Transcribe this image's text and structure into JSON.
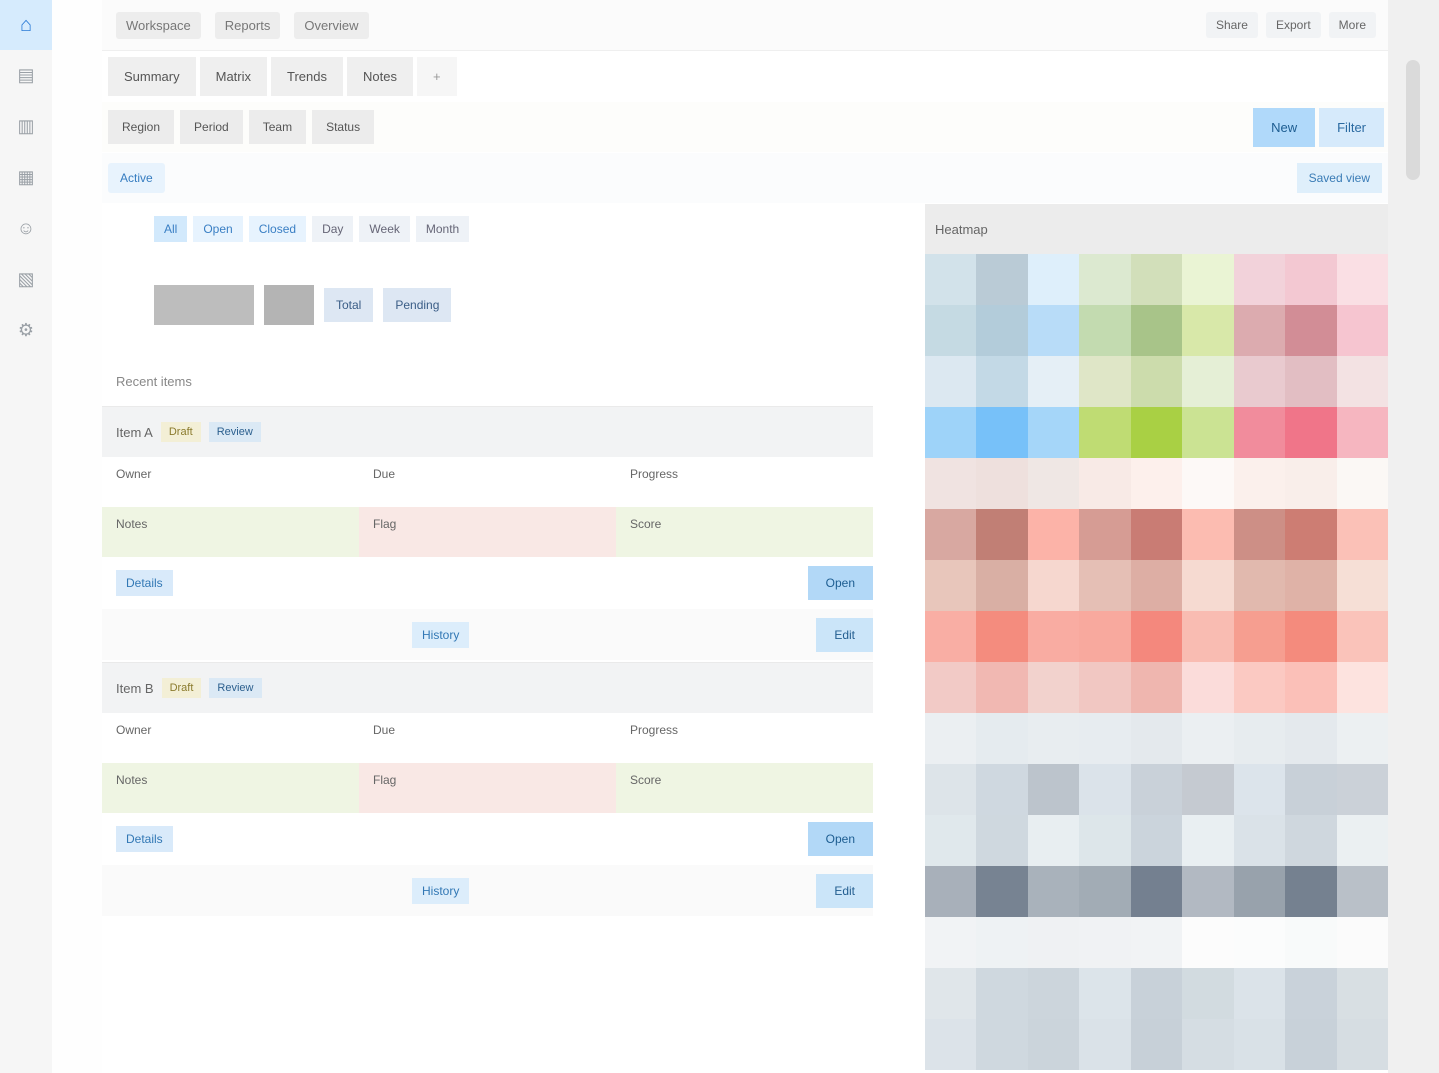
{
  "app": {
    "home_icon": "home-icon"
  },
  "rail": {
    "items": [
      {
        "icon": "inbox-icon",
        "glyph": "▤"
      },
      {
        "icon": "chart-icon",
        "glyph": "▥"
      },
      {
        "icon": "calendar-icon",
        "glyph": "▦"
      },
      {
        "icon": "users-icon",
        "glyph": "☺"
      },
      {
        "icon": "folder-icon",
        "glyph": "▧"
      },
      {
        "icon": "settings-icon",
        "glyph": "⚙"
      }
    ]
  },
  "header": {
    "crumbs": [
      "Workspace",
      "Reports",
      "Overview"
    ],
    "right": [
      "Share",
      "Export",
      "More"
    ]
  },
  "tabs": [
    "Summary",
    "Matrix",
    "Trends",
    "Notes",
    "+"
  ],
  "filters": [
    "Region",
    "Period",
    "Team",
    "Status"
  ],
  "toolbar": {
    "primary": "New",
    "secondary": "Filter"
  },
  "chips": {
    "left": "Active",
    "right": "Saved view"
  },
  "mini_toolbar": {
    "pills": [
      "All",
      "Open",
      "Closed"
    ],
    "segs": [
      "Day",
      "Week",
      "Month"
    ]
  },
  "kpi": {
    "labels": [
      "Total",
      "Pending"
    ]
  },
  "sections": {
    "title": "Recent items"
  },
  "cards": [
    {
      "label": "Item A",
      "tags": [
        "Draft",
        "Review"
      ],
      "cells": [
        "Owner",
        "Due",
        "Progress",
        "Notes",
        "Flag",
        "Score"
      ],
      "link": "Details",
      "cta": "Open",
      "link2": "History",
      "cta2": "Edit"
    },
    {
      "label": "Item B",
      "tags": [
        "Draft",
        "Review"
      ],
      "cells": [
        "Owner",
        "Due",
        "Progress",
        "Notes",
        "Flag",
        "Score"
      ],
      "link": "Details",
      "cta": "Open",
      "link2": "History",
      "cta2": "Edit"
    }
  ],
  "right_panel": {
    "title": "Heatmap",
    "colors": [
      [
        "#d2e2ea",
        "#bacbd6",
        "#deeffb",
        "#dce9d0",
        "#d2dfba",
        "#eaf4d4",
        "#f2d2da",
        "#f3c8d2",
        "#fadfe4"
      ],
      [
        "#c5dae3",
        "#b3ccda",
        "#b8dcf8",
        "#c3dbb0",
        "#a8c489",
        "#d8e8a9",
        "#dcabaf",
        "#d28d96",
        "#f6c5d0"
      ],
      [
        "#dce8f1",
        "#c3d9e6",
        "#e5eff6",
        "#dfe6c7",
        "#ccdcac",
        "#e5efd6",
        "#e9cacf",
        "#e2bec3",
        "#f3e2e3"
      ],
      [
        "#9ed3f9",
        "#77c1f9",
        "#a5d6f9",
        "#bfdc73",
        "#a9d044",
        "#cbe393",
        "#f18c9c",
        "#f07589",
        "#f6b6c0"
      ],
      [
        "#f0e3e1",
        "#eee0dd",
        "#efe7e4",
        "#f8eae6",
        "#fdf0ec",
        "#fdf9f7",
        "#fbf0ec",
        "#f9eeea",
        "#fbf8f5"
      ],
      [
        "#d8a8a1",
        "#c17f75",
        "#fcb3a8",
        "#d69c94",
        "#c97c74",
        "#fcbcb1",
        "#cd8f86",
        "#cd7d73",
        "#fbc1b7"
      ],
      [
        "#e8c6bb",
        "#d9afa4",
        "#f6d7cf",
        "#e5bfb5",
        "#ddaea4",
        "#f6dad1",
        "#e1b9ae",
        "#dfb2a7",
        "#f6dfd6"
      ],
      [
        "#f9aea4",
        "#f48c7e",
        "#f9aca2",
        "#f8a99e",
        "#f4887d",
        "#f9bcb2",
        "#f69e90",
        "#f48b7d",
        "#fac3ba"
      ],
      [
        "#f2cac6",
        "#f1b8b2",
        "#f2d2cd",
        "#f1c7c2",
        "#efb6af",
        "#fbdcda",
        "#fbc9c2",
        "#fbc0b8",
        "#fde3df"
      ],
      [
        "#ebeff2",
        "#e5ebef",
        "#e8edf0",
        "#e7ecf0",
        "#e4e9ed",
        "#ebeff2",
        "#e7ecef",
        "#e4e9ed",
        "#ecf0f2"
      ],
      [
        "#dde4e9",
        "#cfd8e0",
        "#bcc4cc",
        "#dbe3ea",
        "#c9d1d9",
        "#c5cad1",
        "#dce4eb",
        "#c8d0d8",
        "#cbd1d8"
      ],
      [
        "#e0e8ec",
        "#cfd8df",
        "#e8eef1",
        "#dde6ea",
        "#cbd4dc",
        "#e9eff2",
        "#dae2e8",
        "#cfd7de",
        "#ebf0f2"
      ],
      [
        "#a8b0ba",
        "#778392",
        "#a9b2bb",
        "#a2acb5",
        "#748090",
        "#b2b9c2",
        "#98a2ac",
        "#758190",
        "#b9c0c8"
      ],
      [
        "#f1f3f5",
        "#eef2f4",
        "#eff1f3",
        "#f0f2f4",
        "#f1f3f5",
        "#fcfcfc",
        "#fbfcfc",
        "#f8fafa",
        "#fbfbfb"
      ],
      [
        "#e0e6ea",
        "#cfd8df",
        "#ccd5dc",
        "#dce4ea",
        "#c8d1d9",
        "#d2dbe0",
        "#dbe3e9",
        "#c9d2da",
        "#d8dfe3"
      ],
      [
        "#dce3e9",
        "#cfd8df",
        "#cbd4db",
        "#dae2e8",
        "#c7d0d8",
        "#d5dde3",
        "#d9e1e7",
        "#c8d1d9",
        "#d6dde2"
      ]
    ]
  }
}
